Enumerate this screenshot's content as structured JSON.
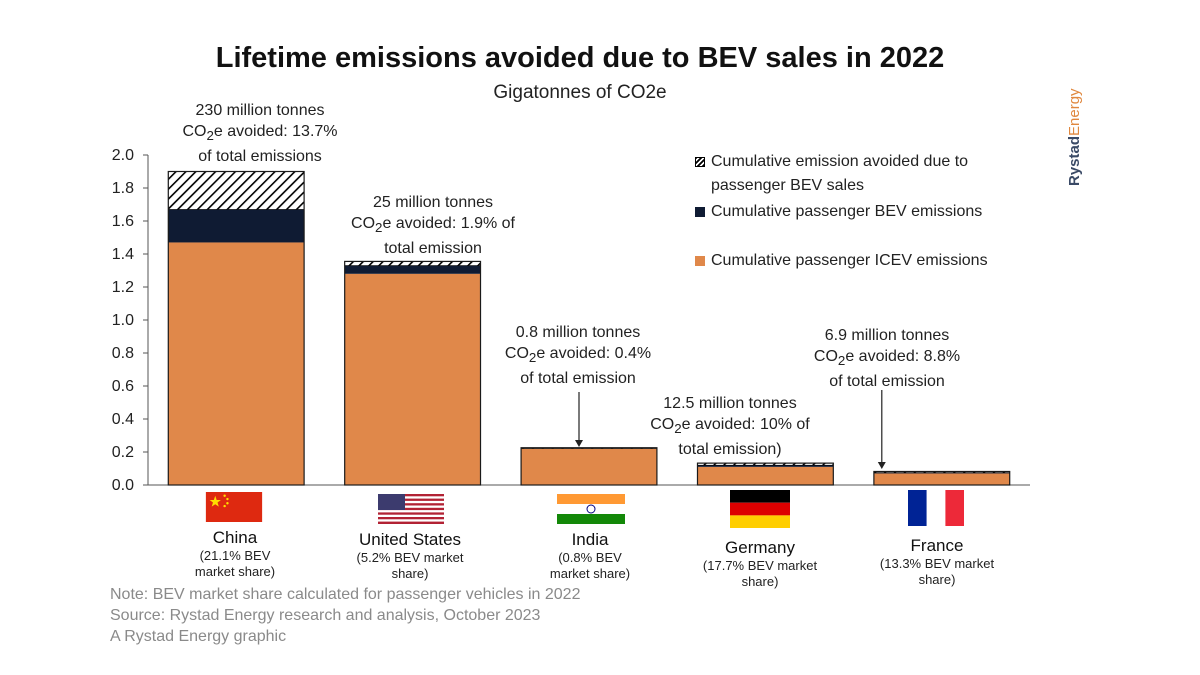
{
  "brand": {
    "part1": "Rystad",
    "part2": "Energy"
  },
  "chart_data": {
    "type": "bar",
    "stacked": true,
    "title": "Lifetime emissions avoided due to BEV sales in 2022",
    "subtitle": "Gigatonnes of CO2e",
    "ylim": [
      0,
      2.0
    ],
    "yticks": [
      "0.0",
      "0.2",
      "0.4",
      "0.6",
      "0.8",
      "1.0",
      "1.2",
      "1.4",
      "1.6",
      "1.8",
      "2.0"
    ],
    "categories": [
      "China",
      "United States",
      "India",
      "Germany",
      "France"
    ],
    "category_notes": [
      "(21.1% BEV\nmarket share)",
      "(5.2% BEV market\nshare)",
      "(0.8% BEV\nmarket share)",
      "(17.7% BEV market\nshare)",
      "(13.3% BEV market\nshare)"
    ],
    "series": [
      {
        "name": "Cumulative passenger ICEV emissions",
        "color": "#e0884a",
        "values": [
          1.47,
          1.28,
          0.22,
          0.11,
          0.07
        ]
      },
      {
        "name": "Cumulative passenger BEV emissions",
        "color": "#0f1b33",
        "values": [
          0.2,
          0.05,
          0.005,
          0.01,
          0.005
        ]
      },
      {
        "name": "Cumulative emission avoided due to passenger BEV sales",
        "color": "hatch",
        "values": [
          0.23,
          0.025,
          0.0008,
          0.0125,
          0.0069
        ]
      }
    ],
    "annotations": [
      {
        "pre": "230 million tonnes",
        "co": "CO",
        "sub": "2",
        "post": "e avoided: 13.7%",
        "tail": "of total emissions"
      },
      {
        "pre": "25 million tonnes",
        "co": "CO",
        "sub": "2",
        "post": "e avoided: 1.9% of",
        "tail": "total emission"
      },
      {
        "pre": "0.8 million tonnes",
        "co": "CO",
        "sub": "2",
        "post": "e avoided: 0.4%",
        "tail": "of total emission"
      },
      {
        "pre": "12.5 million tonnes",
        "co": "CO",
        "sub": "2",
        "post": "e avoided: 10% of",
        "tail": "total emission)"
      },
      {
        "pre": "6.9 million tonnes",
        "co": "CO",
        "sub": "2",
        "post": "e avoided: 8.8%",
        "tail": "of total emission"
      }
    ],
    "legend_position": "top-right",
    "grid": false
  },
  "notes": [
    "Note: BEV market share calculated for passenger vehicles in 2022",
    "Source: Rystad Energy research and analysis, October 2023",
    "A Rystad Energy graphic"
  ]
}
